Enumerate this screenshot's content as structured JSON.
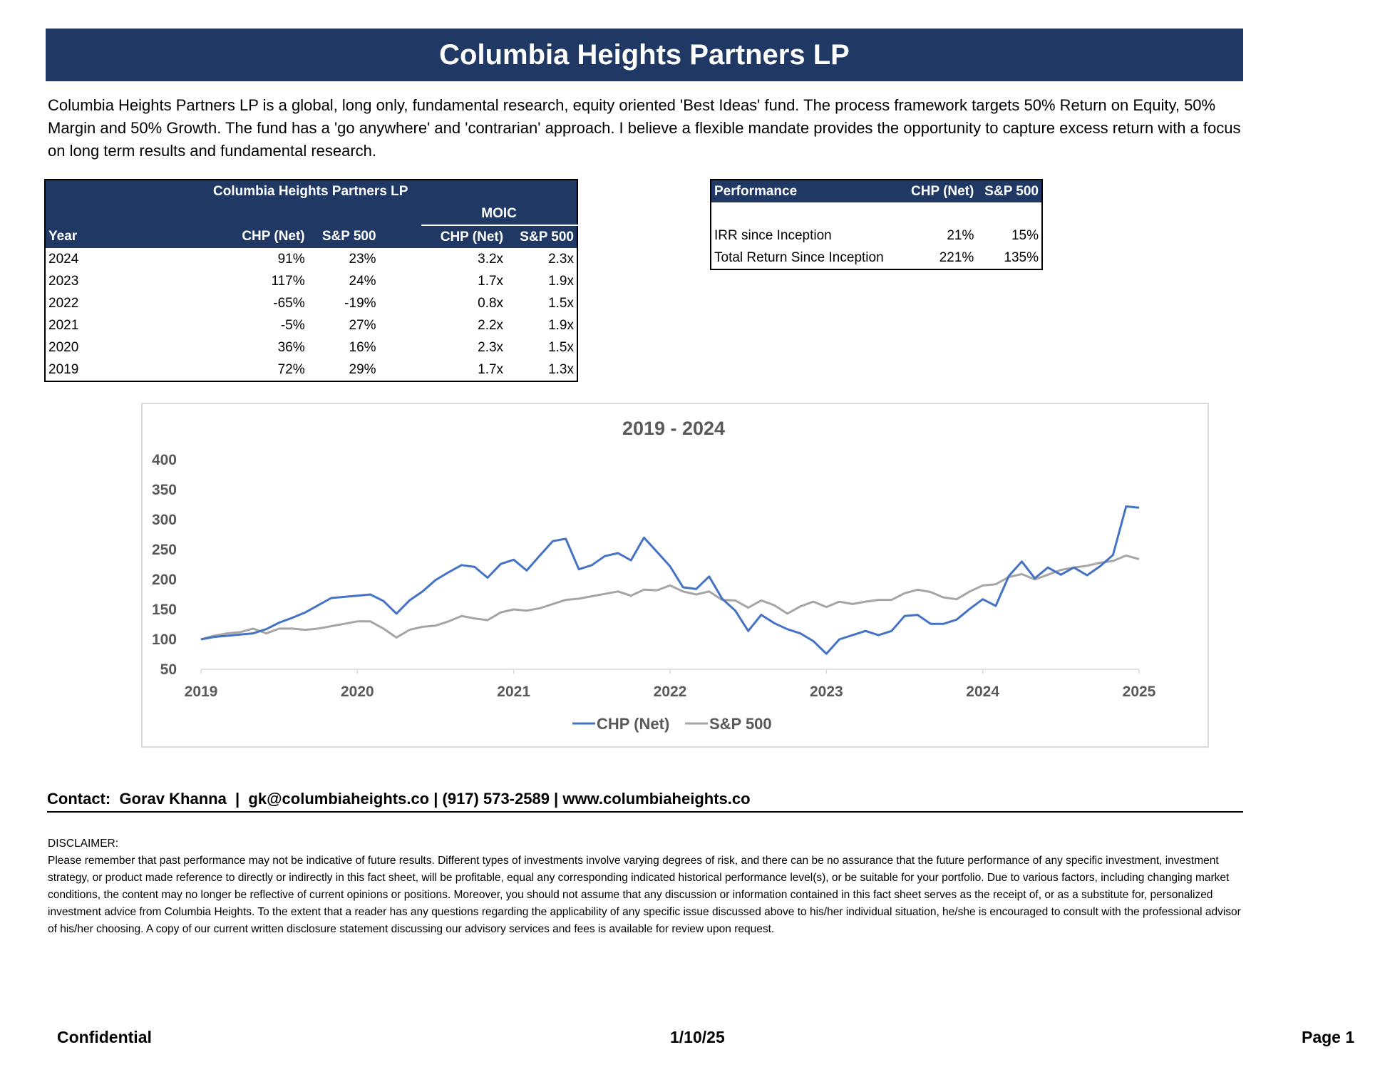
{
  "header": {
    "title": "Columbia Heights Partners LP"
  },
  "intro": "Columbia Heights Partners LP is a global, long only, fundamental research, equity oriented 'Best Ideas' fund. The process framework targets 50% Return on Equity, 50% Margin and 50% Growth. The fund has a 'go anywhere' and 'contrarian' approach. I believe a flexible mandate provides the opportunity to capture excess return with a focus on long term results and fundamental research.",
  "returns_table": {
    "title": "Columbia Heights Partners LP",
    "moic_label": "MOIC",
    "columns": [
      "Year",
      "CHP (Net)",
      "S&P 500",
      "CHP (Net)",
      "S&P 500"
    ],
    "rows": [
      [
        "2024",
        "91%",
        "23%",
        "3.2x",
        "2.3x"
      ],
      [
        "2023",
        "117%",
        "24%",
        "1.7x",
        "1.9x"
      ],
      [
        "2022",
        "-65%",
        "-19%",
        "0.8x",
        "1.5x"
      ],
      [
        "2021",
        "-5%",
        "27%",
        "2.2x",
        "1.9x"
      ],
      [
        "2020",
        "36%",
        "16%",
        "2.3x",
        "1.5x"
      ],
      [
        "2019",
        "72%",
        "29%",
        "1.7x",
        "1.3x"
      ]
    ]
  },
  "performance_table": {
    "columns": [
      "Performance",
      "CHP (Net)",
      "S&P 500"
    ],
    "rows": [
      [
        "IRR since Inception",
        "21%",
        "15%"
      ],
      [
        "Total Return Since Inception",
        "221%",
        "135%"
      ]
    ]
  },
  "chart_data": {
    "type": "line",
    "title": "2019 - 2024",
    "xlabel": "",
    "ylabel": "",
    "xlim": [
      2019,
      2025
    ],
    "ylim": [
      50,
      400
    ],
    "yticks": [
      50,
      100,
      150,
      200,
      250,
      300,
      350,
      400
    ],
    "xticks": [
      2019,
      2020,
      2021,
      2022,
      2023,
      2024,
      2025
    ],
    "grid": false,
    "legend_position": "bottom",
    "series": [
      {
        "name": "CHP (Net)",
        "color": "#4472c4",
        "x": [
          2019.0,
          2019.083,
          2019.167,
          2019.25,
          2019.333,
          2019.417,
          2019.5,
          2019.583,
          2019.667,
          2019.75,
          2019.833,
          2019.917,
          2020.0,
          2020.083,
          2020.167,
          2020.25,
          2020.333,
          2020.417,
          2020.5,
          2020.583,
          2020.667,
          2020.75,
          2020.833,
          2020.917,
          2021.0,
          2021.083,
          2021.167,
          2021.25,
          2021.333,
          2021.417,
          2021.5,
          2021.583,
          2021.667,
          2021.75,
          2021.833,
          2021.917,
          2022.0,
          2022.083,
          2022.167,
          2022.25,
          2022.333,
          2022.417,
          2022.5,
          2022.583,
          2022.667,
          2022.75,
          2022.833,
          2022.917,
          2023.0,
          2023.083,
          2023.167,
          2023.25,
          2023.333,
          2023.417,
          2023.5,
          2023.583,
          2023.667,
          2023.75,
          2023.833,
          2023.917,
          2024.0,
          2024.083,
          2024.167,
          2024.25,
          2024.333,
          2024.417,
          2024.5,
          2024.583,
          2024.667,
          2024.75,
          2024.833,
          2024.917,
          2025.0
        ],
        "values": [
          100,
          104,
          106,
          108,
          110,
          117,
          128,
          136,
          145,
          157,
          169,
          171,
          173,
          175,
          164,
          143,
          165,
          180,
          199,
          212,
          224,
          221,
          203,
          226,
          233,
          215,
          240,
          264,
          268,
          217,
          224,
          239,
          244,
          232,
          270,
          246,
          222,
          187,
          184,
          205,
          168,
          148,
          114,
          141,
          127,
          117,
          110,
          97,
          76,
          100,
          107,
          114,
          107,
          114,
          139,
          141,
          126,
          126,
          133,
          151,
          167,
          156,
          206,
          230,
          202,
          220,
          208,
          220,
          207,
          222,
          241,
          322,
          320
        ]
      },
      {
        "name": "S&P 500",
        "color": "#a5a5a5",
        "x": [
          2019.0,
          2019.083,
          2019.167,
          2019.25,
          2019.333,
          2019.417,
          2019.5,
          2019.583,
          2019.667,
          2019.75,
          2019.833,
          2019.917,
          2020.0,
          2020.083,
          2020.167,
          2020.25,
          2020.333,
          2020.417,
          2020.5,
          2020.583,
          2020.667,
          2020.75,
          2020.833,
          2020.917,
          2021.0,
          2021.083,
          2021.167,
          2021.25,
          2021.333,
          2021.417,
          2021.5,
          2021.583,
          2021.667,
          2021.75,
          2021.833,
          2021.917,
          2022.0,
          2022.083,
          2022.167,
          2022.25,
          2022.333,
          2022.417,
          2022.5,
          2022.583,
          2022.667,
          2022.75,
          2022.833,
          2022.917,
          2023.0,
          2023.083,
          2023.167,
          2023.25,
          2023.333,
          2023.417,
          2023.5,
          2023.583,
          2023.667,
          2023.75,
          2023.833,
          2023.917,
          2024.0,
          2024.083,
          2024.167,
          2024.25,
          2024.333,
          2024.417,
          2024.5,
          2024.583,
          2024.667,
          2024.75,
          2024.833,
          2024.917,
          2025.0
        ],
        "values": [
          100,
          106,
          110,
          112,
          118,
          110,
          118,
          118,
          116,
          118,
          122,
          126,
          130,
          130,
          118,
          103,
          116,
          121,
          123,
          130,
          139,
          135,
          132,
          145,
          150,
          148,
          152,
          159,
          166,
          168,
          172,
          176,
          180,
          173,
          183,
          182,
          190,
          180,
          175,
          180,
          166,
          165,
          153,
          165,
          157,
          143,
          155,
          163,
          154,
          163,
          159,
          163,
          166,
          166,
          177,
          183,
          179,
          170,
          167,
          180,
          190,
          192,
          204,
          209,
          200,
          208,
          216,
          220,
          223,
          228,
          231,
          240,
          234
        ]
      }
    ]
  },
  "contact": "Contact:  Gorav Khanna  |  gk@columbiaheights.co | (917) 573-2589 | www.columbiaheights.co",
  "disclaimer": {
    "heading": "DISCLAIMER:",
    "body": "Please remember that  past  performance  may  not  be  indicative  of  future  results.  Different types of investments involve varying degrees of risk, and there can be no assurance that the future performance of any specific investment, investment strategy, or product made reference to directly or indirectly in this fact sheet, will be profitable, equal any corresponding indicated historical performance level(s), or be suitable for your portfolio. Due to various factors, including changing market conditions, the content may no longer be reflective of current opinions or positions. Moreover, you should not assume that any discussion or information contained in this fact sheet serves as the receipt of, or as a substitute for, personalized investment advice from Columbia Heights.  To the extent that a reader  has  any questions regarding the applicability of any specific issue discussed above to his/her individual situation, he/she is encouraged to consult with the professional advisor of his/her choosing. A copy of our current written disclosure statement discussing our advisory services and  fees  is  available  for  review  upon request."
  },
  "footer": {
    "left": "Confidential",
    "center": "1/10/25",
    "right": "Page 1"
  }
}
